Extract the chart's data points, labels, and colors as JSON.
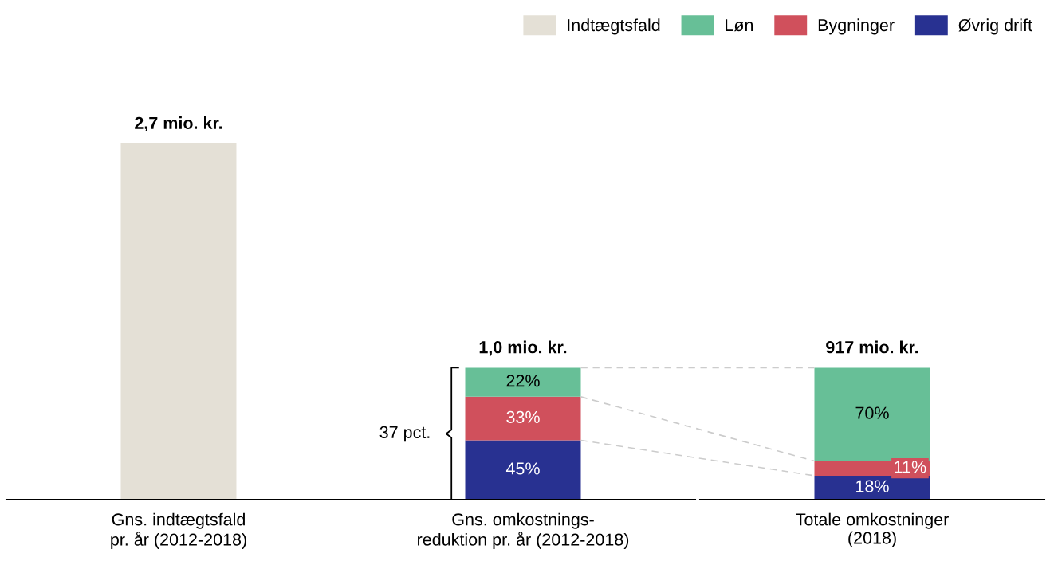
{
  "chart_data": [
    {
      "type": "bar",
      "stacked": true,
      "legend": "top right",
      "grid": false,
      "tick_labels": "x",
      "categories": [
        "Gns. indtægtsfald\npr. år (2012-2018)",
        "Gns. omkostnings-\nreduktion pr. år (2012-2018)"
      ],
      "series": [
        {
          "name": "Øvrig drift",
          "color": "#283191",
          "values": [
            null,
            0.45
          ],
          "value_labels": [
            null,
            "45%"
          ]
        },
        {
          "name": "Bygninger",
          "color": "#d0505c",
          "values": [
            null,
            0.33
          ],
          "value_labels": [
            null,
            "33%"
          ]
        },
        {
          "name": "Løn",
          "color": "#67bf97",
          "values": [
            null,
            0.22
          ],
          "value_labels": [
            null,
            "22%"
          ]
        },
        {
          "name": "Indtægtsfald",
          "color": "#e4e0d6",
          "values": [
            2.7,
            null
          ],
          "value_labels": [
            null,
            null
          ]
        }
      ],
      "totals": [
        "2,7 mio. kr.",
        "1,0 mio. kr."
      ],
      "annotations": [
        "37 pct."
      ]
    },
    {
      "type": "bar",
      "stacked": true,
      "grid": false,
      "tick_labels": "x",
      "categories": [
        "Totale omkostninger\n(2018)"
      ],
      "series": [
        {
          "color": "#283191",
          "values": [
            18
          ],
          "value_labels": [
            "18%"
          ]
        },
        {
          "color": "#d0505c",
          "values": [
            11
          ],
          "value_labels": [
            "11%"
          ]
        },
        {
          "color": "#67bf97",
          "values": [
            70
          ],
          "value_labels": [
            "70%"
          ]
        }
      ],
      "annotations": [
        {
          "text": "917 mio. kr.",
          "x": "Totale omkostninger\n(2018)",
          "y": 99
        }
      ]
    }
  ]
}
